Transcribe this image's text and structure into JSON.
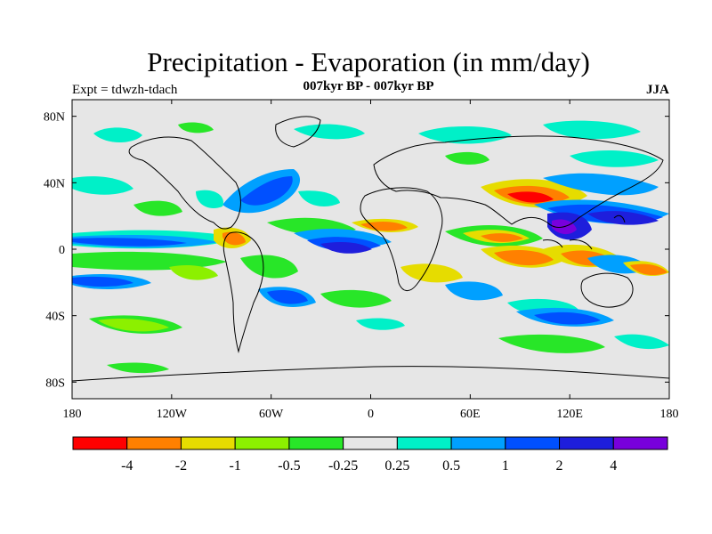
{
  "header": {
    "title": "Precipitation - Evaporation (in mm/day)",
    "subtitle": "007kyr BP - 007kyr BP",
    "left_label": "Expt = tdwzh-tdach",
    "right_label": "JJA"
  },
  "map": {
    "projection": "cylindrical-equidistant",
    "lon_range": [
      -180,
      180
    ],
    "lat_range": [
      -90,
      90
    ],
    "background_color": "#e6e6e6",
    "lon_ticks": [
      {
        "value": -180,
        "label": "180"
      },
      {
        "value": -120,
        "label": "120W"
      },
      {
        "value": -60,
        "label": "60W"
      },
      {
        "value": 0,
        "label": "0"
      },
      {
        "value": 60,
        "label": "60E"
      },
      {
        "value": 120,
        "label": "120E"
      },
      {
        "value": 180,
        "label": "180"
      }
    ],
    "lat_ticks": [
      {
        "value": 80,
        "label": "80N"
      },
      {
        "value": 40,
        "label": "40N"
      },
      {
        "value": 0,
        "label": "0"
      },
      {
        "value": -40,
        "label": "40S"
      },
      {
        "value": -80,
        "label": "80S"
      }
    ]
  },
  "colorbar": {
    "colors": [
      "#ff0000",
      "#ff8000",
      "#e6dc00",
      "#8cf000",
      "#28e628",
      "#e6e6e6",
      "#00f0c8",
      "#00a0ff",
      "#0050ff",
      "#1e1edc",
      "#7800dc"
    ],
    "labels": [
      "-4",
      "-2",
      "-1",
      "-0.5",
      "-0.25",
      "0.25",
      "0.5",
      "1",
      "2",
      "4"
    ]
  }
}
